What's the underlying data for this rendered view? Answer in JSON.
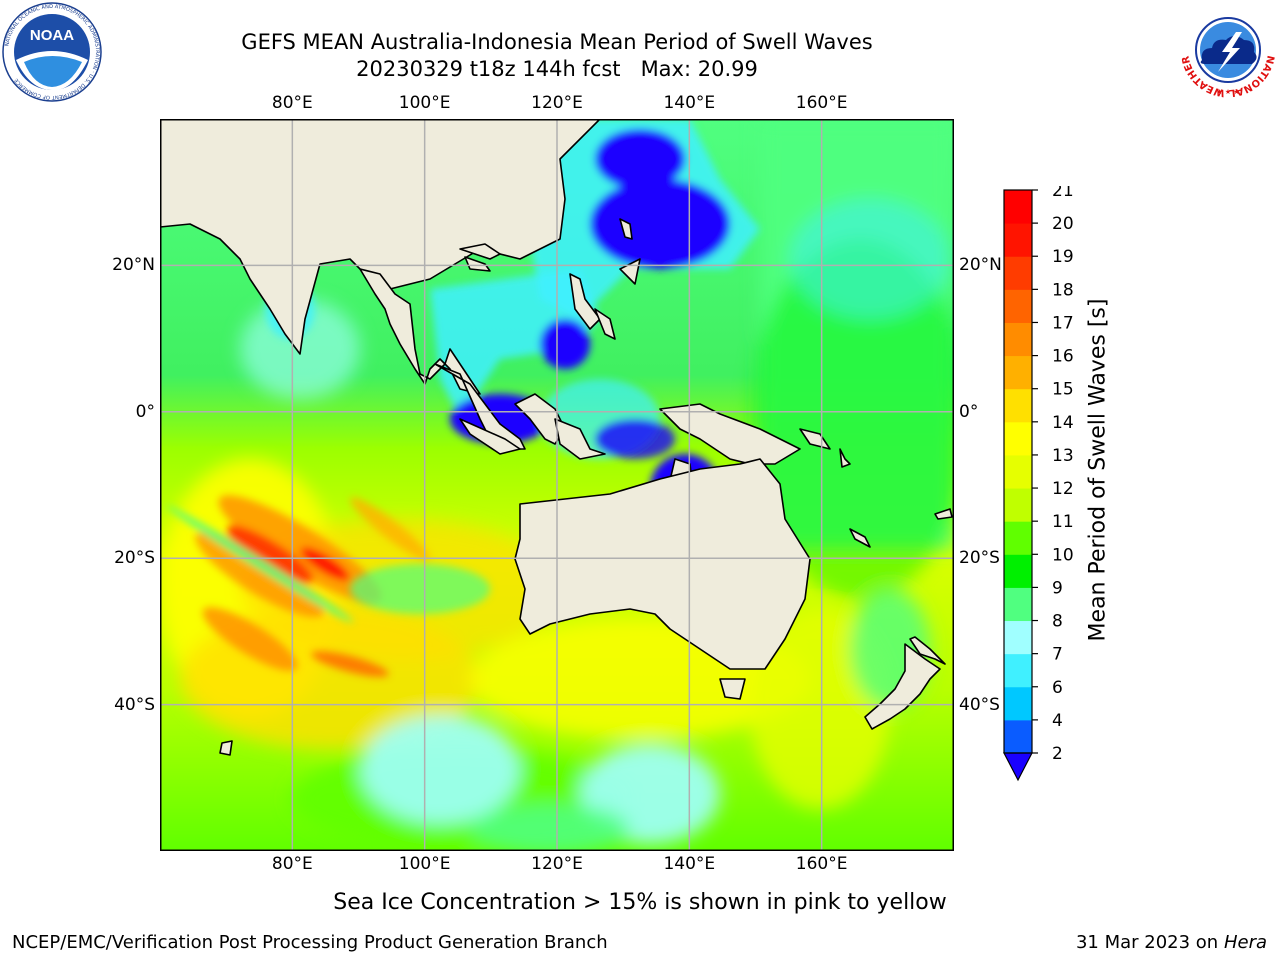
{
  "title": {
    "line1": "GEFS MEAN Australia-Indonesia Mean Period of Swell Waves",
    "line2": "20230329 t18z 144h fcst   Max: 20.99"
  },
  "logos": {
    "noaa": {
      "text": "NOAA",
      "ring_text": "NATIONAL OCEANIC AND ATMOSPHERIC ADMINISTRATION · U.S. DEPARTMENT OF COMMERCE",
      "icon": "noaa-logo"
    },
    "nws": {
      "ring_text": "NATIONAL WEATHER SERVICE",
      "icon": "nws-logo"
    }
  },
  "map": {
    "lon_ticks": [
      "80°E",
      "100°E",
      "120°E",
      "140°E",
      "160°E"
    ],
    "lon_values": [
      80,
      100,
      120,
      140,
      160
    ],
    "lat_ticks": [
      "20°N",
      "0°",
      "20°S",
      "40°S"
    ],
    "lat_values": [
      20,
      0,
      -20,
      -40
    ],
    "lon_range": [
      60,
      180
    ],
    "lat_range": [
      -60,
      40
    ],
    "land_color": "#efecdc",
    "grid_color": "#b0b0b0"
  },
  "colorbar": {
    "label": "Mean Period of Swell Waves [s]",
    "levels": [
      "2",
      "4",
      "6",
      "7",
      "8",
      "9",
      "10",
      "11",
      "12",
      "13",
      "14",
      "15",
      "16",
      "17",
      "18",
      "19",
      "20",
      "21"
    ],
    "colors": [
      "#0a5cff",
      "#00c8ff",
      "#40f0ff",
      "#a0ffff",
      "#50ff80",
      "#00f000",
      "#60ff00",
      "#c0ff00",
      "#e6ff00",
      "#ffff00",
      "#ffe000",
      "#ffb000",
      "#ff8c00",
      "#ff6400",
      "#ff3c00",
      "#ff1400",
      "#ff0000"
    ],
    "under_color": "#1a00ff"
  },
  "ice_note": "Sea Ice Concentration > 15% is shown in pink to yellow",
  "footer": {
    "left": "NCEP/EMC/Verification Post Processing Product Generation Branch",
    "right_prefix": "31 Mar 2023 on",
    "right_host": "Hera"
  }
}
